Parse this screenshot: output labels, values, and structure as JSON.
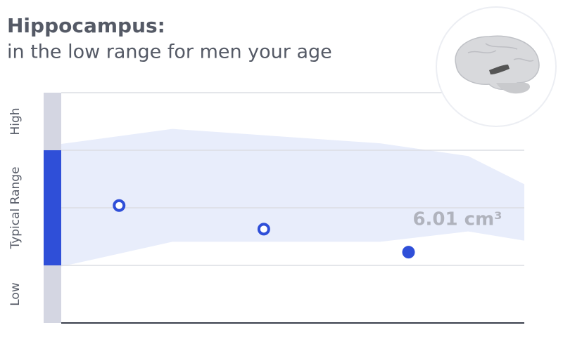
{
  "chart_data": {
    "type": "range-dots",
    "title": "Hippocampus:",
    "subtitle": "in the low range for men your age",
    "annotation": "6.01 cm³",
    "xlim": [
      0,
      8
    ],
    "ylim": [
      0,
      4
    ],
    "gridlines": [
      1,
      2,
      3,
      4
    ],
    "zones": [
      {
        "label": "Low",
        "from": 0,
        "to": 1,
        "color": "#d4d6e2"
      },
      {
        "label": "Typical Range",
        "from": 1,
        "to": 3,
        "color": "#2f4fd8"
      },
      {
        "label": "High",
        "from": 3,
        "to": 4,
        "color": "#d4d6e2"
      }
    ],
    "band": {
      "x": [
        0,
        1.92,
        5.51,
        7.03,
        8
      ],
      "lower": [
        0.98,
        1.41,
        1.41,
        1.59,
        1.43
      ],
      "upper": [
        3.11,
        3.37,
        3.12,
        2.9,
        2.41
      ],
      "color": "#e8edfb"
    },
    "points": {
      "x": [
        1,
        3.5,
        6
      ],
      "values": [
        2.04,
        1.63,
        1.23
      ],
      "filled": [
        false,
        false,
        true
      ],
      "color": "#2f4fd8"
    }
  }
}
